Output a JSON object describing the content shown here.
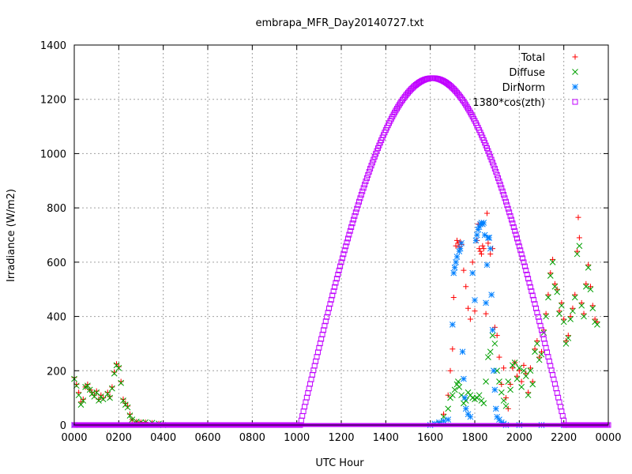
{
  "chart_data": {
    "type": "scatter",
    "title": "embrapa_MFR_Day20140727.txt",
    "xlabel": "UTC Hour",
    "ylabel": "Irradiance (W/m2)",
    "xlim": [
      0,
      24
    ],
    "ylim": [
      0,
      1400
    ],
    "grid": true,
    "legend_position": "top-right",
    "x_ticks": [
      {
        "value": 0,
        "label": "0000"
      },
      {
        "value": 2,
        "label": "0200"
      },
      {
        "value": 4,
        "label": "0400"
      },
      {
        "value": 6,
        "label": "0600"
      },
      {
        "value": 8,
        "label": "0800"
      },
      {
        "value": 10,
        "label": "1000"
      },
      {
        "value": 12,
        "label": "1200"
      },
      {
        "value": 14,
        "label": "1400"
      },
      {
        "value": 16,
        "label": "1600"
      },
      {
        "value": 18,
        "label": "1800"
      },
      {
        "value": 20,
        "label": "2000"
      },
      {
        "value": 22,
        "label": "2200"
      },
      {
        "value": 24,
        "label": "0000"
      }
    ],
    "y_ticks": [
      0,
      200,
      400,
      600,
      800,
      1000,
      1200,
      1400
    ],
    "series": [
      {
        "name": "Total",
        "marker": "plus",
        "color": "#ff0000",
        "points": [
          [
            0.0,
            175
          ],
          [
            0.1,
            150
          ],
          [
            0.2,
            120
          ],
          [
            0.3,
            85
          ],
          [
            0.4,
            95
          ],
          [
            0.5,
            140
          ],
          [
            0.6,
            150
          ],
          [
            0.7,
            130
          ],
          [
            0.8,
            120
          ],
          [
            0.9,
            110
          ],
          [
            1.0,
            125
          ],
          [
            1.1,
            95
          ],
          [
            1.2,
            110
          ],
          [
            1.3,
            100
          ],
          [
            1.5,
            120
          ],
          [
            1.6,
            105
          ],
          [
            1.7,
            140
          ],
          [
            1.8,
            195
          ],
          [
            1.9,
            225
          ],
          [
            2.0,
            215
          ],
          [
            2.1,
            160
          ],
          [
            2.2,
            95
          ],
          [
            2.3,
            80
          ],
          [
            2.4,
            70
          ],
          [
            2.5,
            40
          ],
          [
            2.6,
            20
          ],
          [
            2.8,
            12
          ],
          [
            3.0,
            10
          ],
          [
            3.2,
            10
          ],
          [
            3.5,
            8
          ],
          [
            3.8,
            5
          ],
          [
            4.0,
            0
          ],
          [
            16.4,
            5
          ],
          [
            16.6,
            40
          ],
          [
            16.8,
            110
          ],
          [
            16.9,
            200
          ],
          [
            17.0,
            280
          ],
          [
            17.05,
            470
          ],
          [
            17.15,
            660
          ],
          [
            17.2,
            680
          ],
          [
            17.25,
            670
          ],
          [
            17.3,
            655
          ],
          [
            17.35,
            675
          ],
          [
            17.4,
            665
          ],
          [
            17.5,
            570
          ],
          [
            17.6,
            510
          ],
          [
            17.7,
            430
          ],
          [
            17.8,
            390
          ],
          [
            17.9,
            600
          ],
          [
            18.0,
            420
          ],
          [
            18.1,
            680
          ],
          [
            18.15,
            740
          ],
          [
            18.2,
            650
          ],
          [
            18.25,
            640
          ],
          [
            18.3,
            630
          ],
          [
            18.35,
            660
          ],
          [
            18.4,
            650
          ],
          [
            18.5,
            410
          ],
          [
            18.55,
            780
          ],
          [
            18.6,
            670
          ],
          [
            18.7,
            630
          ],
          [
            18.8,
            650
          ],
          [
            18.9,
            360
          ],
          [
            19.0,
            330
          ],
          [
            19.1,
            250
          ],
          [
            19.2,
            150
          ],
          [
            19.3,
            210
          ],
          [
            19.4,
            100
          ],
          [
            19.5,
            60
          ],
          [
            19.6,
            150
          ],
          [
            19.7,
            210
          ],
          [
            19.8,
            230
          ],
          [
            19.9,
            180
          ],
          [
            20.0,
            200
          ],
          [
            20.1,
            160
          ],
          [
            20.2,
            220
          ],
          [
            20.3,
            190
          ],
          [
            20.4,
            120
          ],
          [
            20.5,
            210
          ],
          [
            20.6,
            160
          ],
          [
            20.7,
            280
          ],
          [
            20.8,
            310
          ],
          [
            20.9,
            250
          ],
          [
            21.0,
            270
          ],
          [
            21.1,
            350
          ],
          [
            21.2,
            410
          ],
          [
            21.3,
            480
          ],
          [
            21.4,
            560
          ],
          [
            21.5,
            610
          ],
          [
            21.6,
            520
          ],
          [
            21.7,
            500
          ],
          [
            21.8,
            420
          ],
          [
            21.9,
            450
          ],
          [
            22.0,
            390
          ],
          [
            22.1,
            310
          ],
          [
            22.2,
            330
          ],
          [
            22.3,
            400
          ],
          [
            22.4,
            430
          ],
          [
            22.5,
            480
          ],
          [
            22.6,
            640
          ],
          [
            22.65,
            765
          ],
          [
            22.7,
            690
          ],
          [
            22.8,
            450
          ],
          [
            22.9,
            410
          ],
          [
            23.0,
            520
          ],
          [
            23.1,
            590
          ],
          [
            23.2,
            510
          ],
          [
            23.3,
            440
          ],
          [
            23.4,
            390
          ],
          [
            23.5,
            380
          ]
        ]
      },
      {
        "name": "Diffuse",
        "marker": "cross",
        "color": "#00a000",
        "points": [
          [
            0.0,
            170
          ],
          [
            0.1,
            145
          ],
          [
            0.2,
            110
          ],
          [
            0.3,
            75
          ],
          [
            0.4,
            90
          ],
          [
            0.5,
            140
          ],
          [
            0.6,
            145
          ],
          [
            0.7,
            130
          ],
          [
            0.8,
            115
          ],
          [
            0.9,
            105
          ],
          [
            1.0,
            120
          ],
          [
            1.1,
            90
          ],
          [
            1.2,
            105
          ],
          [
            1.3,
            95
          ],
          [
            1.5,
            115
          ],
          [
            1.6,
            100
          ],
          [
            1.7,
            135
          ],
          [
            1.8,
            190
          ],
          [
            1.9,
            220
          ],
          [
            2.0,
            210
          ],
          [
            2.1,
            155
          ],
          [
            2.2,
            90
          ],
          [
            2.3,
            75
          ],
          [
            2.4,
            65
          ],
          [
            2.5,
            35
          ],
          [
            2.6,
            20
          ],
          [
            2.8,
            12
          ],
          [
            3.0,
            10
          ],
          [
            3.2,
            10
          ],
          [
            3.5,
            8
          ],
          [
            3.8,
            5
          ],
          [
            4.0,
            0
          ],
          [
            16.4,
            5
          ],
          [
            16.6,
            30
          ],
          [
            16.8,
            60
          ],
          [
            16.9,
            100
          ],
          [
            17.0,
            110
          ],
          [
            17.1,
            130
          ],
          [
            17.2,
            150
          ],
          [
            17.25,
            160
          ],
          [
            17.3,
            140
          ],
          [
            17.4,
            110
          ],
          [
            17.5,
            80
          ],
          [
            17.6,
            90
          ],
          [
            17.7,
            120
          ],
          [
            17.8,
            110
          ],
          [
            17.9,
            100
          ],
          [
            18.0,
            95
          ],
          [
            18.1,
            100
          ],
          [
            18.2,
            110
          ],
          [
            18.3,
            90
          ],
          [
            18.4,
            80
          ],
          [
            18.5,
            160
          ],
          [
            18.6,
            250
          ],
          [
            18.7,
            270
          ],
          [
            18.8,
            330
          ],
          [
            18.9,
            300
          ],
          [
            19.0,
            200
          ],
          [
            19.1,
            160
          ],
          [
            19.2,
            120
          ],
          [
            19.3,
            90
          ],
          [
            19.4,
            70
          ],
          [
            19.5,
            160
          ],
          [
            19.6,
            130
          ],
          [
            19.7,
            220
          ],
          [
            19.8,
            230
          ],
          [
            19.9,
            170
          ],
          [
            20.0,
            210
          ],
          [
            20.1,
            140
          ],
          [
            20.2,
            200
          ],
          [
            20.3,
            180
          ],
          [
            20.4,
            110
          ],
          [
            20.5,
            200
          ],
          [
            20.6,
            150
          ],
          [
            20.7,
            270
          ],
          [
            20.8,
            300
          ],
          [
            20.9,
            240
          ],
          [
            21.0,
            260
          ],
          [
            21.1,
            340
          ],
          [
            21.2,
            400
          ],
          [
            21.3,
            470
          ],
          [
            21.4,
            550
          ],
          [
            21.5,
            600
          ],
          [
            21.6,
            510
          ],
          [
            21.7,
            490
          ],
          [
            21.8,
            410
          ],
          [
            21.9,
            440
          ],
          [
            22.0,
            380
          ],
          [
            22.1,
            300
          ],
          [
            22.2,
            320
          ],
          [
            22.3,
            390
          ],
          [
            22.4,
            420
          ],
          [
            22.5,
            470
          ],
          [
            22.6,
            630
          ],
          [
            22.7,
            660
          ],
          [
            22.8,
            440
          ],
          [
            22.9,
            400
          ],
          [
            23.0,
            510
          ],
          [
            23.1,
            580
          ],
          [
            23.2,
            500
          ],
          [
            23.3,
            430
          ],
          [
            23.4,
            380
          ],
          [
            23.5,
            370
          ]
        ]
      },
      {
        "name": "DirNorm",
        "marker": "star",
        "color": "#0080ff",
        "points": [
          [
            0.0,
            0
          ],
          [
            4.0,
            0
          ],
          [
            16.0,
            0
          ],
          [
            16.2,
            5
          ],
          [
            16.4,
            10
          ],
          [
            16.6,
            15
          ],
          [
            16.8,
            20
          ],
          [
            17.0,
            370
          ],
          [
            17.05,
            560
          ],
          [
            17.1,
            580
          ],
          [
            17.15,
            600
          ],
          [
            17.2,
            620
          ],
          [
            17.3,
            640
          ],
          [
            17.35,
            650
          ],
          [
            17.4,
            670
          ],
          [
            17.45,
            270
          ],
          [
            17.5,
            170
          ],
          [
            17.55,
            100
          ],
          [
            17.6,
            60
          ],
          [
            17.7,
            40
          ],
          [
            17.8,
            30
          ],
          [
            17.9,
            560
          ],
          [
            18.0,
            460
          ],
          [
            18.05,
            680
          ],
          [
            18.1,
            700
          ],
          [
            18.15,
            720
          ],
          [
            18.2,
            730
          ],
          [
            18.25,
            740
          ],
          [
            18.3,
            745
          ],
          [
            18.35,
            740
          ],
          [
            18.4,
            745
          ],
          [
            18.45,
            700
          ],
          [
            18.5,
            450
          ],
          [
            18.55,
            590
          ],
          [
            18.6,
            690
          ],
          [
            18.65,
            690
          ],
          [
            18.7,
            650
          ],
          [
            18.75,
            480
          ],
          [
            18.8,
            350
          ],
          [
            18.85,
            200
          ],
          [
            18.9,
            130
          ],
          [
            18.95,
            60
          ],
          [
            19.0,
            30
          ],
          [
            19.1,
            20
          ],
          [
            19.2,
            10
          ],
          [
            19.3,
            5
          ],
          [
            19.4,
            0
          ],
          [
            20.0,
            0
          ],
          [
            21.0,
            0
          ],
          [
            22.0,
            0
          ]
        ]
      },
      {
        "name": "1380*cos(zth)",
        "marker": "square",
        "color": "#c000ff",
        "peak_x": 16.1,
        "peak_y": 1278,
        "rise_x": 10.15,
        "set_x": 22.05
      }
    ]
  }
}
